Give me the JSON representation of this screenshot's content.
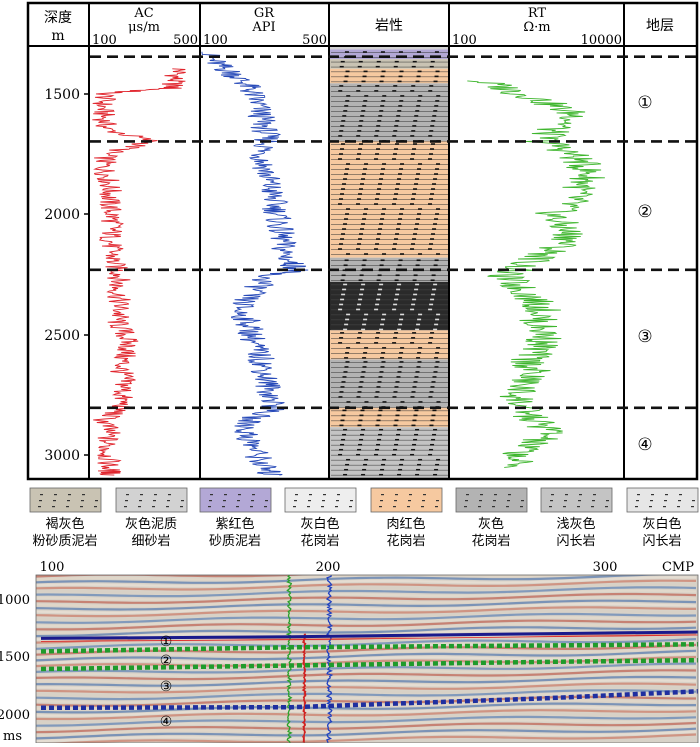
{
  "chart_data": [
    {
      "type": "line",
      "title": "",
      "depth_axis": {
        "label": "深度",
        "unit": "m",
        "ticks": [
          1500,
          2000,
          2500,
          3000
        ],
        "range": [
          1310,
          3090
        ]
      },
      "columns": [
        {
          "name": "AC",
          "unit": "μs/m",
          "range": [
            100,
            500
          ],
          "color": "#e0242c",
          "series": [
            {
              "depth": 1400,
              "value": 430
            },
            {
              "depth": 1440,
              "value": 410
            },
            {
              "depth": 1480,
              "value": 400
            },
            {
              "depth": 1500,
              "value": 160
            },
            {
              "depth": 1550,
              "value": 145
            },
            {
              "depth": 1600,
              "value": 150
            },
            {
              "depth": 1650,
              "value": 160
            },
            {
              "depth": 1700,
              "value": 330
            },
            {
              "depth": 1750,
              "value": 160
            },
            {
              "depth": 1800,
              "value": 150
            },
            {
              "depth": 1850,
              "value": 165
            },
            {
              "depth": 1900,
              "value": 175
            },
            {
              "depth": 1950,
              "value": 170
            },
            {
              "depth": 2000,
              "value": 180
            },
            {
              "depth": 2050,
              "value": 185
            },
            {
              "depth": 2100,
              "value": 175
            },
            {
              "depth": 2150,
              "value": 180
            },
            {
              "depth": 2200,
              "value": 185
            },
            {
              "depth": 2250,
              "value": 210
            },
            {
              "depth": 2300,
              "value": 200
            },
            {
              "depth": 2350,
              "value": 205
            },
            {
              "depth": 2400,
              "value": 210
            },
            {
              "depth": 2450,
              "value": 200
            },
            {
              "depth": 2500,
              "value": 230
            },
            {
              "depth": 2550,
              "value": 240
            },
            {
              "depth": 2600,
              "value": 220
            },
            {
              "depth": 2650,
              "value": 215
            },
            {
              "depth": 2700,
              "value": 230
            },
            {
              "depth": 2750,
              "value": 215
            },
            {
              "depth": 2800,
              "value": 220
            },
            {
              "depth": 2850,
              "value": 150
            },
            {
              "depth": 2900,
              "value": 170
            },
            {
              "depth": 2950,
              "value": 160
            },
            {
              "depth": 3000,
              "value": 165
            },
            {
              "depth": 3050,
              "value": 170
            },
            {
              "depth": 3080,
              "value": 175
            }
          ]
        },
        {
          "name": "GR",
          "unit": "API",
          "range": [
            100,
            500
          ],
          "color": "#2548b8",
          "series": [
            {
              "depth": 1330,
              "value": 110
            },
            {
              "depth": 1380,
              "value": 150
            },
            {
              "depth": 1420,
              "value": 200
            },
            {
              "depth": 1460,
              "value": 240
            },
            {
              "depth": 1500,
              "value": 260
            },
            {
              "depth": 1550,
              "value": 280
            },
            {
              "depth": 1600,
              "value": 290
            },
            {
              "depth": 1650,
              "value": 300
            },
            {
              "depth": 1700,
              "value": 310
            },
            {
              "depth": 1750,
              "value": 290
            },
            {
              "depth": 1800,
              "value": 300
            },
            {
              "depth": 1850,
              "value": 310
            },
            {
              "depth": 1900,
              "value": 320
            },
            {
              "depth": 1950,
              "value": 330
            },
            {
              "depth": 2000,
              "value": 340
            },
            {
              "depth": 2050,
              "value": 345
            },
            {
              "depth": 2100,
              "value": 355
            },
            {
              "depth": 2150,
              "value": 360
            },
            {
              "depth": 2200,
              "value": 380
            },
            {
              "depth": 2230,
              "value": 410
            },
            {
              "depth": 2250,
              "value": 310
            },
            {
              "depth": 2300,
              "value": 280
            },
            {
              "depth": 2350,
              "value": 240
            },
            {
              "depth": 2400,
              "value": 220
            },
            {
              "depth": 2450,
              "value": 250
            },
            {
              "depth": 2500,
              "value": 260
            },
            {
              "depth": 2550,
              "value": 270
            },
            {
              "depth": 2600,
              "value": 290
            },
            {
              "depth": 2650,
              "value": 300
            },
            {
              "depth": 2700,
              "value": 310
            },
            {
              "depth": 2750,
              "value": 320
            },
            {
              "depth": 2800,
              "value": 330
            },
            {
              "depth": 2850,
              "value": 250
            },
            {
              "depth": 2900,
              "value": 240
            },
            {
              "depth": 2950,
              "value": 260
            },
            {
              "depth": 3000,
              "value": 280
            },
            {
              "depth": 3050,
              "value": 300
            },
            {
              "depth": 3080,
              "value": 320
            }
          ]
        },
        {
          "name": "RT",
          "unit": "Ω·m",
          "range": [
            100,
            10000
          ],
          "scale": "log",
          "color": "#3db52c",
          "series": [
            {
              "depth": 1450,
              "value": 200
            },
            {
              "depth": 1500,
              "value": 600
            },
            {
              "depth": 1550,
              "value": 1500
            },
            {
              "depth": 1600,
              "value": 3000
            },
            {
              "depth": 1650,
              "value": 1500
            },
            {
              "depth": 1700,
              "value": 1200
            },
            {
              "depth": 1750,
              "value": 2500
            },
            {
              "depth": 1800,
              "value": 3500
            },
            {
              "depth": 1850,
              "value": 4000
            },
            {
              "depth": 1900,
              "value": 3000
            },
            {
              "depth": 1950,
              "value": 2500
            },
            {
              "depth": 2000,
              "value": 1500
            },
            {
              "depth": 2050,
              "value": 2000
            },
            {
              "depth": 2100,
              "value": 2500
            },
            {
              "depth": 2150,
              "value": 1500
            },
            {
              "depth": 2200,
              "value": 800
            },
            {
              "depth": 2250,
              "value": 400
            },
            {
              "depth": 2300,
              "value": 600
            },
            {
              "depth": 2350,
              "value": 900
            },
            {
              "depth": 2400,
              "value": 1200
            },
            {
              "depth": 2450,
              "value": 1000
            },
            {
              "depth": 2500,
              "value": 1300
            },
            {
              "depth": 2550,
              "value": 1100
            },
            {
              "depth": 2600,
              "value": 800
            },
            {
              "depth": 2650,
              "value": 900
            },
            {
              "depth": 2700,
              "value": 700
            },
            {
              "depth": 2750,
              "value": 600
            },
            {
              "depth": 2800,
              "value": 700
            },
            {
              "depth": 2850,
              "value": 900
            },
            {
              "depth": 2900,
              "value": 1500
            },
            {
              "depth": 2950,
              "value": 800
            },
            {
              "depth": 3000,
              "value": 600
            },
            {
              "depth": 3050,
              "value": 500
            }
          ]
        }
      ],
      "lithology_column": {
        "header": "岩性",
        "intervals": [
          {
            "top": 1310,
            "bottom": 1320,
            "lith": "灰色泥质细砂岩"
          },
          {
            "top": 1320,
            "bottom": 1360,
            "lith": "紫红色砂质泥岩"
          },
          {
            "top": 1360,
            "bottom": 1400,
            "lith": "褐灰色粉砂质泥岩"
          },
          {
            "top": 1400,
            "bottom": 1460,
            "lith": "肉红色花岗岩"
          },
          {
            "top": 1460,
            "bottom": 1700,
            "lith": "灰色花岗岩"
          },
          {
            "top": 1700,
            "bottom": 2180,
            "lith": "肉红色花岗岩"
          },
          {
            "top": 2180,
            "bottom": 2280,
            "lith": "灰色花岗岩"
          },
          {
            "top": 2280,
            "bottom": 2480,
            "lith": "深色花岗岩"
          },
          {
            "top": 2480,
            "bottom": 2600,
            "lith": "肉红色花岗岩"
          },
          {
            "top": 2600,
            "bottom": 2800,
            "lith": "灰色花岗岩"
          },
          {
            "top": 2800,
            "bottom": 2880,
            "lith": "肉红色花岗岩"
          },
          {
            "top": 2880,
            "bottom": 3090,
            "lith": "浅灰色闪长岩"
          }
        ]
      },
      "strata": {
        "header": "地层",
        "boundaries": [
          1350,
          1700,
          2230,
          2800
        ],
        "labels": [
          {
            "label": "①",
            "depth": 1535
          },
          {
            "label": "②",
            "depth": 1990
          },
          {
            "label": "③",
            "depth": 2510
          },
          {
            "label": "④",
            "depth": 2960
          }
        ]
      }
    },
    {
      "type": "other",
      "x_axis": {
        "unit": "CMP",
        "ticks": [
          100,
          200,
          300
        ],
        "range": [
          98,
          362
        ]
      },
      "y_axis": {
        "unit": "ms",
        "ticks": [
          1000,
          1500,
          2000
        ],
        "range": [
          820,
          2250
        ]
      },
      "horizons": [
        {
          "label": "①",
          "color": "#1a1a8c",
          "points": [
            [
              100,
              1360
            ],
            [
              200,
              1345
            ],
            [
              300,
              1320
            ],
            [
              362,
              1305
            ]
          ]
        },
        {
          "label": "②",
          "color": "#1f9b2b",
          "points": [
            [
              100,
              1470
            ],
            [
              200,
              1435
            ],
            [
              300,
              1420
            ],
            [
              362,
              1410
            ]
          ]
        },
        {
          "label": "③",
          "color": "#1f9b2b",
          "points": [
            [
              100,
              1620
            ],
            [
              200,
              1590
            ],
            [
              300,
              1560
            ],
            [
              362,
              1545
            ]
          ]
        },
        {
          "label": "④",
          "color": "#1f2fa0",
          "points": [
            [
              100,
              1950
            ],
            [
              200,
              1945
            ],
            [
              300,
              1870
            ],
            [
              362,
              1810
            ]
          ]
        }
      ]
    }
  ],
  "header": {
    "depth_label": "深度",
    "depth_unit": "m",
    "lith_label": "岩性",
    "strata_label": "地层"
  },
  "ac": {
    "name": "AC",
    "unit": "μs/m",
    "min": "100",
    "max": "500"
  },
  "gr": {
    "name": "GR",
    "unit": "API",
    "min": "100",
    "max": "500"
  },
  "rt": {
    "name": "RT",
    "unit": "Ω·m",
    "min": "100",
    "max": "10000"
  },
  "depth_ticks": [
    "1500",
    "2000",
    "2500",
    "3000"
  ],
  "strata_labels": [
    "①",
    "②",
    "③",
    "④"
  ],
  "legend": [
    {
      "line1": "褐灰色",
      "line2": "粉砂质泥岩",
      "fill": "#c9c3b3"
    },
    {
      "line1": "灰色泥质",
      "line2": "细砂岩",
      "fill": "#d2d2d2"
    },
    {
      "line1": "紫红色",
      "line2": "砂质泥岩",
      "fill": "#b3a8d6"
    },
    {
      "line1": "灰白色",
      "line2": "花岗岩",
      "fill": "#eeeeee"
    },
    {
      "line1": "肉红色",
      "line2": "花岗岩",
      "fill": "#f6c9a0"
    },
    {
      "line1": "灰色",
      "line2": "花岗岩",
      "fill": "#b3b3b3"
    },
    {
      "line1": "浅灰色",
      "line2": "闪长岩",
      "fill": "#c4c4c4"
    },
    {
      "line1": "灰白色",
      "line2": "闪长岩",
      "fill": "#e6e6e6"
    }
  ],
  "seismic": {
    "x_ticks": [
      "100",
      "200",
      "300"
    ],
    "x_unit": "CMP",
    "y_ticks": [
      "1000",
      "1500",
      "2000"
    ],
    "y_unit": "ms",
    "horizon_labels": [
      "①",
      "②",
      "③",
      "④"
    ]
  },
  "colors": {
    "ac": "#e0242c",
    "gr": "#2548b8",
    "rt": "#3db52c",
    "peach": "#f6c9a0",
    "gray": "#b3b3b3",
    "dark": "#202020"
  }
}
